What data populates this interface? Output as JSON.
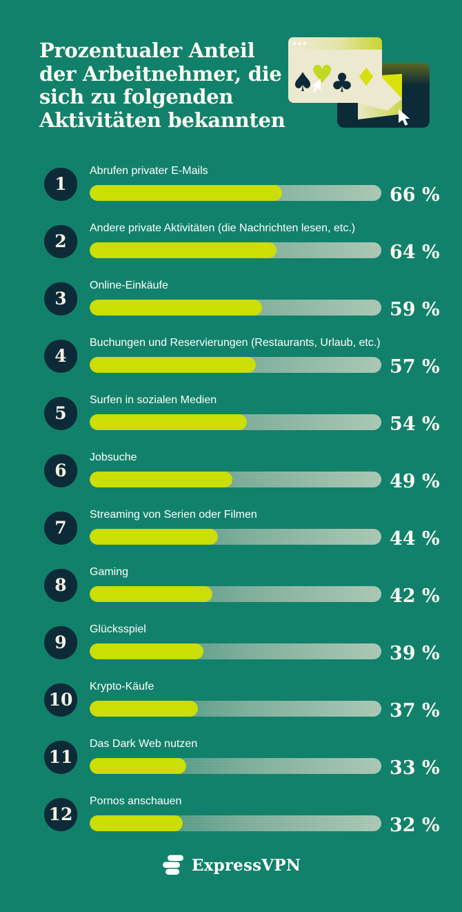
{
  "header": {
    "title": "Prozentualer Anteil\nder Arbeitnehmer, die\nsich zu folgenden\nAktivitäten bekannten"
  },
  "rows": [
    {
      "rank": "1",
      "label": "Abrufen privater E-Mails",
      "value": 66,
      "display": "66 %"
    },
    {
      "rank": "2",
      "label": "Andere private Aktivitäten (die Nachrichten lesen, etc.)",
      "value": 64,
      "display": "64 %"
    },
    {
      "rank": "3",
      "label": "Online-Einkäufe",
      "value": 59,
      "display": "59 %"
    },
    {
      "rank": "4",
      "label": "Buchungen und Reservierungen (Restaurants, Urlaub, etc.)",
      "value": 57,
      "display": "57 %"
    },
    {
      "rank": "5",
      "label": "Surfen in sozialen Medien",
      "value": 54,
      "display": "54 %"
    },
    {
      "rank": "6",
      "label": "Jobsuche",
      "value": 49,
      "display": "49 %"
    },
    {
      "rank": "7",
      "label": "Streaming von Serien oder Filmen",
      "value": 44,
      "display": "44 %"
    },
    {
      "rank": "8",
      "label": "Gaming",
      "value": 42,
      "display": "42 %"
    },
    {
      "rank": "9",
      "label": "Glücksspiel",
      "value": 39,
      "display": "39 %"
    },
    {
      "rank": "10",
      "label": "Krypto-Käufe",
      "value": 37,
      "display": "37 %"
    },
    {
      "rank": "11",
      "label": "Das Dark Web nutzen",
      "value": 33,
      "display": "33 %"
    },
    {
      "rank": "12",
      "label": "Pornos anschauen",
      "value": 32,
      "display": "32 %"
    }
  ],
  "footer": {
    "brand": "ExpressVPN"
  },
  "colors": {
    "background": "#12816B",
    "navy": "#0C2A37",
    "bar_fill": "#CBDE06",
    "track_start": "#28866F",
    "track_end": "#A9C7B3",
    "cream": "#EDE9D0",
    "text": "#FBFAF2"
  },
  "icons": [
    "browser-window-icon",
    "spade-icon",
    "heart-icon",
    "club-icon",
    "diamond-icon",
    "cursor-icon",
    "envelope-icon",
    "expressvpn-logo-icon"
  ],
  "chart_data": {
    "type": "bar",
    "orientation": "horizontal",
    "title": "Prozentualer Anteil der Arbeitnehmer, die sich zu folgenden Aktivitäten bekannten",
    "categories": [
      "Abrufen privater E-Mails",
      "Andere private Aktivitäten (die Nachrichten lesen, etc.)",
      "Online-Einkäufe",
      "Buchungen und Reservierungen (Restaurants, Urlaub, etc.)",
      "Surfen in sozialen Medien",
      "Jobsuche",
      "Streaming von Serien oder Filmen",
      "Gaming",
      "Glücksspiel",
      "Krypto-Käufe",
      "Das Dark Web nutzen",
      "Pornos anschauen"
    ],
    "values": [
      66,
      64,
      59,
      57,
      54,
      49,
      44,
      42,
      39,
      37,
      33,
      32
    ],
    "unit": "%",
    "xlim": [
      0,
      100
    ],
    "grid": false,
    "legend": false,
    "bar_color": "#CBDE06",
    "source_brand": "ExpressVPN"
  }
}
